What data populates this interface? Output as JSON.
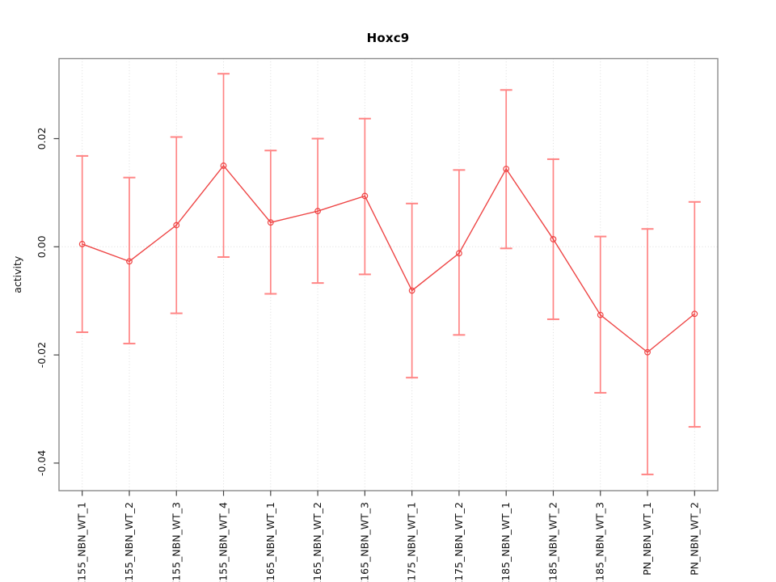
{
  "chart_data": {
    "type": "line",
    "title": "Hoxc9",
    "xlabel": "",
    "ylabel": "activity",
    "categories": [
      "E155_NBN_WT_1",
      "E155_NBN_WT_2",
      "E155_NBN_WT_3",
      "E155_NBN_WT_4",
      "E165_NBN_WT_1",
      "E165_NBN_WT_2",
      "E165_NBN_WT_3",
      "E175_NBN_WT_1",
      "E175_NBN_WT_2",
      "E185_NBN_WT_1",
      "E185_NBN_WT_2",
      "E185_NBN_WT_3",
      "PN_NBN_WT_1",
      "PN_NBN_WT_2"
    ],
    "series": [
      {
        "name": "activity",
        "values": [
          0.0005,
          -0.0027,
          0.004,
          0.015,
          0.0045,
          0.0066,
          0.0094,
          -0.0081,
          -0.0012,
          0.0144,
          0.0014,
          -0.0126,
          -0.0195,
          -0.0124
        ],
        "error_upper": [
          0.0168,
          0.0128,
          0.0203,
          0.032,
          0.0178,
          0.02,
          0.0237,
          0.008,
          0.0142,
          0.029,
          0.0162,
          0.0019,
          0.0033,
          0.0083
        ],
        "error_lower": [
          -0.0158,
          -0.0179,
          -0.0123,
          -0.0019,
          -0.0087,
          -0.0067,
          -0.0051,
          -0.0242,
          -0.0163,
          -0.0003,
          -0.0134,
          -0.027,
          -0.0421,
          -0.0333
        ]
      }
    ],
    "ylim": [
      -0.0451,
      0.0348
    ],
    "yticks": [
      0.02,
      0.0,
      -0.02,
      -0.04
    ],
    "ytick_labels": [
      "0.02",
      "0.00",
      "-0.02",
      "-0.04"
    ],
    "grid": {
      "vertical_per_category": true,
      "horizontal_at_zero": true
    },
    "legend": "none",
    "marker": "open-circle",
    "colors": {
      "series": "#ee4545",
      "errorbar": "#ff8585",
      "grid": "#dcdcdc",
      "box": "#8a8a8a",
      "tick": "#444444",
      "text": "#111111",
      "background": "#ffffff"
    }
  }
}
